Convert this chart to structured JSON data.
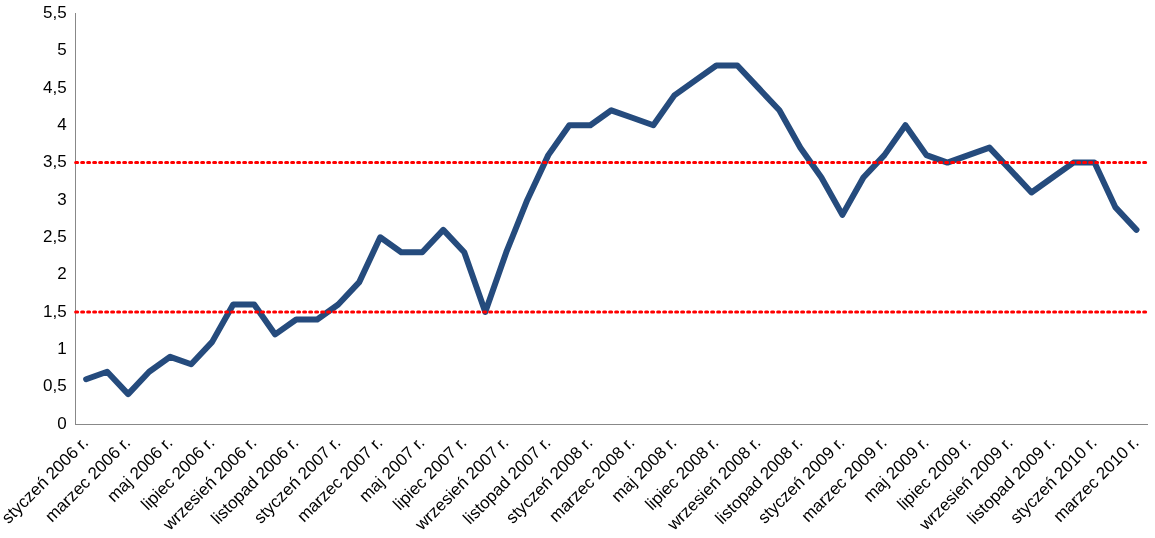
{
  "chart_data": {
    "type": "line",
    "categories": [
      "styczeń 2006 r.",
      null,
      "marzec 2006 r.",
      null,
      "maj 2006 r.",
      null,
      "lipiec 2006 r.",
      null,
      "wrzesień 2006 r.",
      null,
      "listopad 2006 r.",
      null,
      "styczeń 2007 r.",
      null,
      "marzec 2007 r.",
      null,
      "maj 2007 r.",
      null,
      "lipiec 2007 r.",
      null,
      "wrzesień 2007 r.",
      null,
      "listopad 2007 r.",
      null,
      "styczeń 2008 r.",
      null,
      "marzec 2008 r.",
      null,
      "maj 2008 r.",
      null,
      "lipiec 2008 r.",
      null,
      "wrzesień 2008 r.",
      null,
      "listopad 2008 r.",
      null,
      "styczeń 2009 r.",
      null,
      "marzec 2009 r.",
      null,
      "maj 2009 r.",
      null,
      "lipiec 2009 r.",
      null,
      "wrzesień 2009 r.",
      null,
      "listopad 2009 r.",
      null,
      "styczeń 2010 r.",
      null,
      "marzec 2010 r."
    ],
    "series": [
      {
        "color": "#254b7d",
        "values": [
          0.6,
          0.7,
          0.4,
          0.7,
          0.9,
          0.8,
          1.1,
          1.6,
          1.6,
          1.2,
          1.4,
          1.4,
          1.6,
          1.9,
          2.5,
          2.3,
          2.3,
          2.6,
          2.3,
          1.5,
          2.3,
          3.0,
          3.6,
          4.0,
          4.0,
          4.2,
          4.1,
          4.0,
          4.4,
          4.6,
          4.8,
          4.8,
          4.5,
          4.2,
          3.7,
          3.3,
          2.8,
          3.3,
          3.6,
          4.0,
          3.6,
          3.5,
          3.6,
          3.7,
          3.4,
          3.1,
          3.3,
          3.5,
          3.5,
          2.9,
          2.6
        ]
      }
    ],
    "ylim": [
      0,
      5.5
    ],
    "yticks": [
      {
        "value": 0,
        "label": "0"
      },
      {
        "value": 0.5,
        "label": "0,5"
      },
      {
        "value": 1,
        "label": "1"
      },
      {
        "value": 1.5,
        "label": "1,5"
      },
      {
        "value": 2,
        "label": "2"
      },
      {
        "value": 2.5,
        "label": "2,5"
      },
      {
        "value": 3,
        "label": "3"
      },
      {
        "value": 3.5,
        "label": "3,5"
      },
      {
        "value": 4,
        "label": "4"
      },
      {
        "value": 4.5,
        "label": "4,5"
      },
      {
        "value": 5,
        "label": "5"
      },
      {
        "value": 5.5,
        "label": "5,5"
      }
    ],
    "ref_lines": [
      {
        "axis": "y",
        "value": 1.5,
        "color": "#ff0000",
        "line_style": "dotted"
      },
      {
        "axis": "y",
        "value": 3.5,
        "color": "#ff0000",
        "line_style": "dotted"
      }
    ],
    "grid": false,
    "legend": false,
    "marker": "none",
    "line_style": "solid"
  }
}
